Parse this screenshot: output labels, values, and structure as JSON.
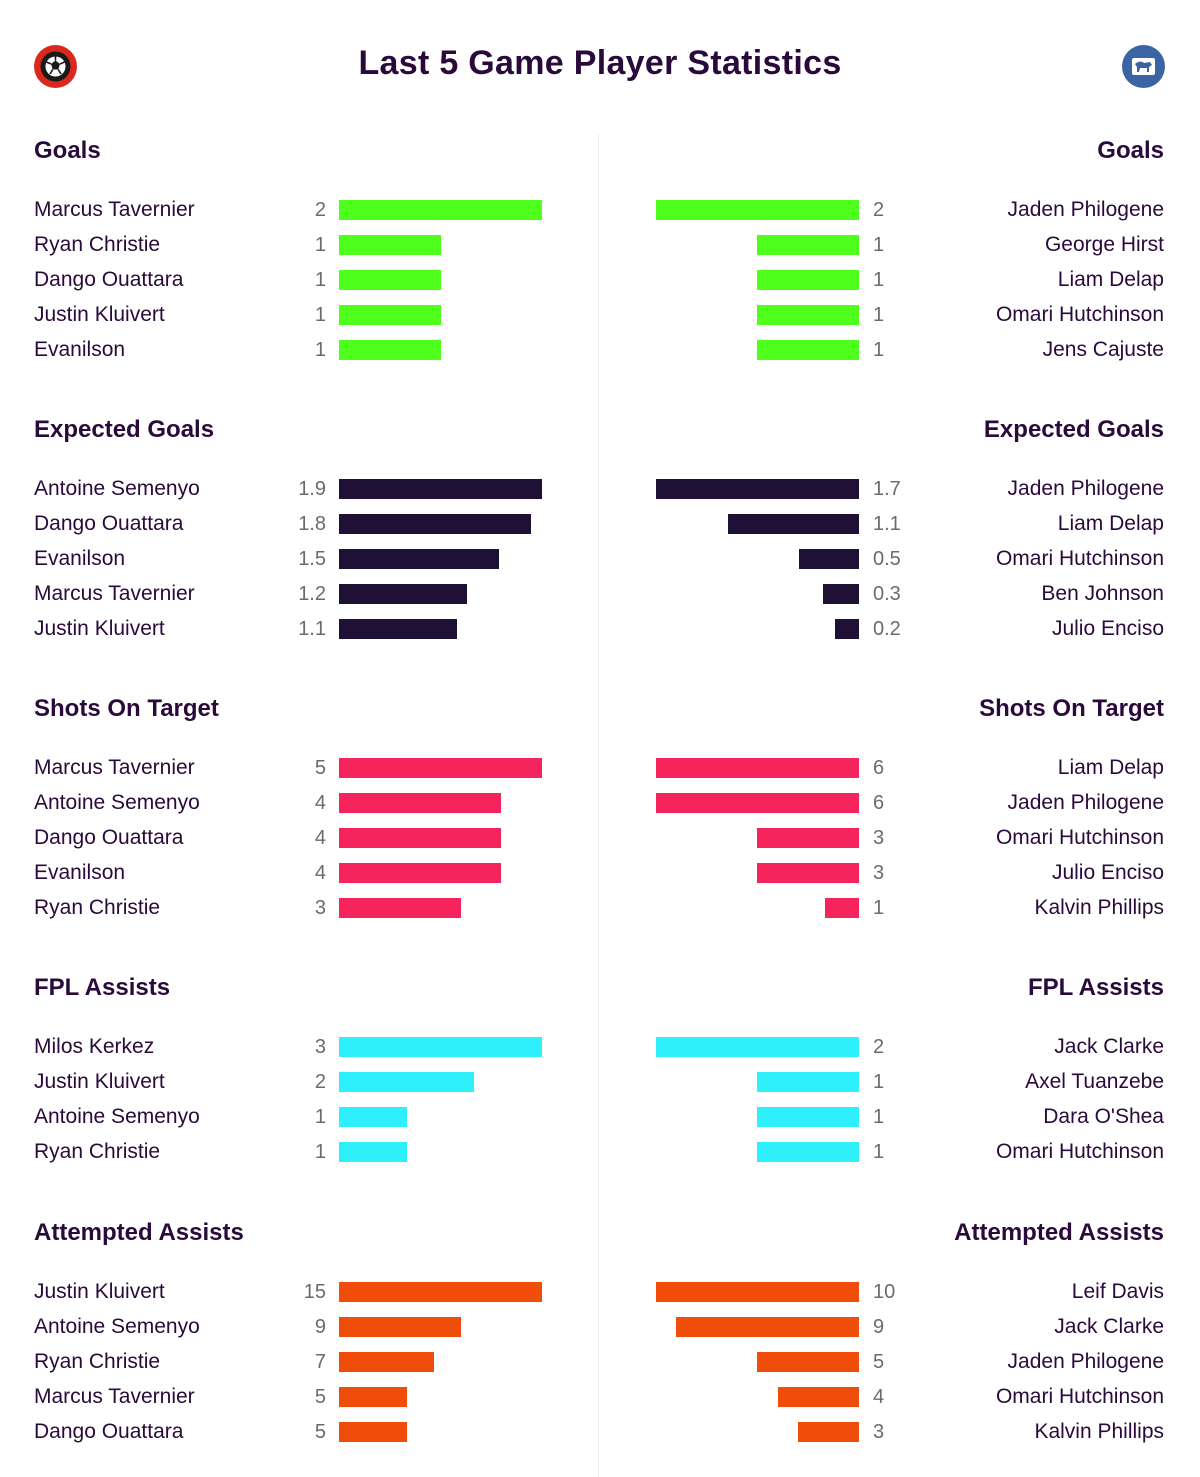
{
  "title": "Last 5 Game Player Statistics",
  "colors": {
    "Goals": "#4eff1b",
    "Expected Goals": "#1f1136",
    "Shots On Target": "#f5245d",
    "FPL Assists": "#2ef0fc",
    "Attempted Assists": "#f04d0b"
  },
  "chart_data": [
    {
      "type": "bar",
      "team": "left",
      "title": "Goals",
      "categories": [
        "Marcus Tavernier",
        "Ryan Christie",
        "Dango Ouattara",
        "Justin Kluivert",
        "Evanilson"
      ],
      "values": [
        2,
        1,
        1,
        1,
        1
      ],
      "labels": [
        "2",
        "1",
        "1",
        "1",
        "1"
      ]
    },
    {
      "type": "bar",
      "team": "right",
      "title": "Goals",
      "categories": [
        "Jaden Philogene",
        "George Hirst",
        "Liam Delap",
        "Omari Hutchinson",
        "Jens Cajuste"
      ],
      "values": [
        2,
        1,
        1,
        1,
        1
      ],
      "labels": [
        "2",
        "1",
        "1",
        "1",
        "1"
      ]
    },
    {
      "type": "bar",
      "team": "left",
      "title": "Expected Goals",
      "categories": [
        "Antoine Semenyo",
        "Dango Ouattara",
        "Evanilson",
        "Marcus Tavernier",
        "Justin Kluivert"
      ],
      "values": [
        1.9,
        1.8,
        1.5,
        1.2,
        1.1
      ],
      "labels": [
        "1.9",
        "1.8",
        "1.5",
        "1.2",
        "1.1"
      ]
    },
    {
      "type": "bar",
      "team": "right",
      "title": "Expected Goals",
      "categories": [
        "Jaden Philogene",
        "Liam Delap",
        "Omari Hutchinson",
        "Ben Johnson",
        "Julio Enciso"
      ],
      "values": [
        1.7,
        1.1,
        0.5,
        0.3,
        0.2
      ],
      "labels": [
        "1.7",
        "1.1",
        "0.5",
        "0.3",
        "0.2"
      ]
    },
    {
      "type": "bar",
      "team": "left",
      "title": "Shots On Target",
      "categories": [
        "Marcus Tavernier",
        "Antoine Semenyo",
        "Dango Ouattara",
        "Evanilson",
        "Ryan Christie"
      ],
      "values": [
        5,
        4,
        4,
        4,
        3
      ],
      "labels": [
        "5",
        "4",
        "4",
        "4",
        "3"
      ]
    },
    {
      "type": "bar",
      "team": "right",
      "title": "Shots On Target",
      "categories": [
        "Liam Delap",
        "Jaden Philogene",
        "Omari Hutchinson",
        "Julio Enciso",
        "Kalvin Phillips"
      ],
      "values": [
        6,
        6,
        3,
        3,
        1
      ],
      "labels": [
        "6",
        "6",
        "3",
        "3",
        "1"
      ]
    },
    {
      "type": "bar",
      "team": "left",
      "title": "FPL Assists",
      "categories": [
        "Milos Kerkez",
        "Justin Kluivert",
        "Antoine Semenyo",
        "Ryan Christie"
      ],
      "values": [
        3,
        2,
        1,
        1
      ],
      "labels": [
        "3",
        "2",
        "1",
        "1"
      ]
    },
    {
      "type": "bar",
      "team": "right",
      "title": "FPL Assists",
      "categories": [
        "Jack Clarke",
        "Axel Tuanzebe",
        "Dara O'Shea",
        "Omari Hutchinson"
      ],
      "values": [
        2,
        1,
        1,
        1
      ],
      "labels": [
        "2",
        "1",
        "1",
        "1"
      ]
    },
    {
      "type": "bar",
      "team": "left",
      "title": "Attempted Assists",
      "categories": [
        "Justin Kluivert",
        "Antoine Semenyo",
        "Ryan Christie",
        "Marcus Tavernier",
        "Dango Ouattara"
      ],
      "values": [
        15,
        9,
        7,
        5,
        5
      ],
      "labels": [
        "15",
        "9",
        "7",
        "5",
        "5"
      ]
    },
    {
      "type": "bar",
      "team": "right",
      "title": "Attempted Assists",
      "categories": [
        "Leif Davis",
        "Jack Clarke",
        "Jaden Philogene",
        "Omari Hutchinson",
        "Kalvin Phillips"
      ],
      "values": [
        10,
        9,
        5,
        4,
        3
      ],
      "labels": [
        "10",
        "9",
        "5",
        "4",
        "3"
      ]
    }
  ]
}
